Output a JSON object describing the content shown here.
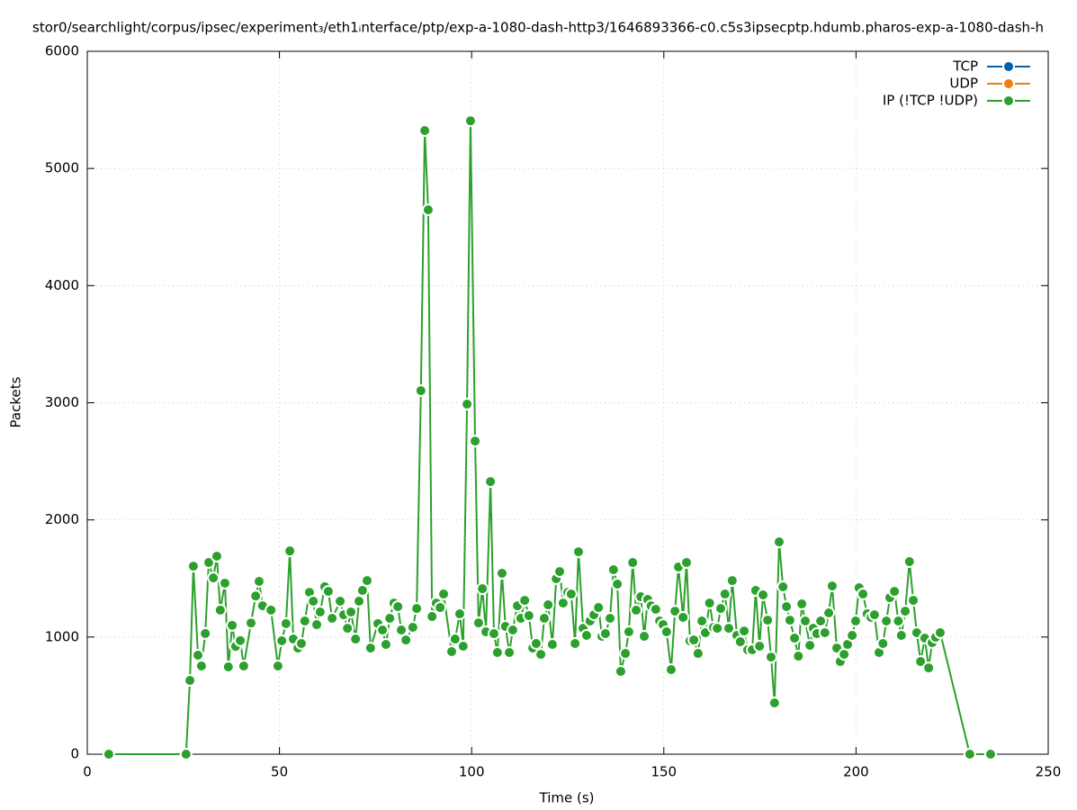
{
  "chart_data": {
    "type": "line",
    "title": "stor0/searchlight/corpus/ipsec/experiment₃/eth1ᵢnterface/ptp/exp-a-1080-dash-http3/1646893366-c0.c5s3ipsecptp.hdumb.pharos-exp-a-1080-dash-h",
    "x_label": "Time (s)",
    "y_label": "Packets",
    "xlim": [
      0,
      250
    ],
    "xticks": [
      0,
      50,
      100,
      150,
      200,
      250
    ],
    "ylim": [
      0,
      6000
    ],
    "yticks": [
      0,
      1000,
      2000,
      3000,
      4000,
      5000,
      6000
    ],
    "grid": true,
    "legend": "top-right",
    "series": [
      {
        "name": "TCP",
        "color": "#0060ad",
        "x": [],
        "values": []
      },
      {
        "name": "UDP",
        "color": "#f07f10",
        "x": [],
        "values": []
      },
      {
        "name": "IP (!TCP  !UDP)",
        "color": "#2ca02c",
        "x": [
          5.6,
          25.7,
          26.7,
          27.6,
          28.8,
          29.7,
          30.7,
          31.6,
          32.8,
          33.7,
          34.6,
          35.8,
          36.7,
          37.7,
          38.6,
          39.8,
          40.7,
          42.6,
          43.8,
          44.7,
          45.6,
          47.8,
          49.6,
          50.6,
          51.7,
          52.7,
          53.6,
          54.8,
          55.7,
          56.6,
          57.8,
          58.8,
          59.7,
          60.6,
          61.8,
          62.7,
          63.7,
          65.8,
          66.7,
          67.7,
          68.6,
          69.8,
          70.7,
          71.6,
          72.8,
          73.7,
          75.6,
          76.8,
          77.7,
          78.7,
          79.8,
          80.8,
          81.7,
          82.9,
          84.7,
          85.7,
          86.8,
          87.8,
          88.7,
          89.7,
          90.8,
          91.8,
          92.7,
          94.8,
          95.7,
          96.9,
          97.8,
          98.8,
          99.7,
          100.9,
          101.8,
          102.8,
          103.7,
          104.9,
          105.8,
          106.7,
          107.9,
          108.8,
          109.8,
          110.7,
          111.9,
          112.8,
          113.8,
          114.9,
          115.9,
          116.8,
          118.0,
          118.9,
          119.9,
          121.0,
          122.0,
          122.9,
          123.8,
          125.0,
          125.9,
          126.9,
          127.8,
          129.0,
          129.9,
          130.8,
          131.8,
          133.0,
          133.9,
          134.8,
          136.0,
          136.9,
          137.9,
          138.8,
          140.0,
          140.9,
          141.9,
          142.8,
          144.0,
          144.9,
          145.8,
          146.7,
          147.9,
          148.9,
          149.8,
          150.7,
          151.9,
          152.9,
          153.8,
          155.0,
          155.9,
          156.8,
          157.8,
          158.9,
          159.9,
          160.8,
          161.9,
          162.9,
          163.9,
          164.8,
          165.9,
          166.9,
          167.8,
          169.0,
          169.9,
          170.9,
          171.8,
          173.0,
          173.9,
          174.9,
          175.8,
          177.0,
          177.9,
          178.8,
          180.0,
          181.0,
          181.9,
          182.8,
          184.0,
          185.0,
          185.9,
          186.8,
          188.0,
          188.9,
          189.8,
          190.8,
          191.9,
          192.9,
          193.8,
          195.0,
          195.9,
          196.9,
          197.8,
          199.0,
          199.9,
          200.8,
          201.8,
          202.9,
          203.9,
          204.8,
          206.0,
          207.0,
          207.9,
          208.8,
          210.0,
          211.0,
          211.8,
          212.8,
          213.9,
          214.9,
          215.8,
          216.8,
          217.9,
          218.9,
          219.8,
          220.7,
          221.9,
          229.6,
          235.0
        ],
        "values": [
          0,
          0,
          630,
          1605,
          845,
          753,
          1030,
          1636,
          1505,
          1690,
          1230,
          1460,
          745,
          1100,
          920,
          970,
          753,
          1120,
          1350,
          1475,
          1267,
          1230,
          753,
          968,
          1115,
          1735,
          983,
          906,
          945,
          1137,
          1382,
          1306,
          1106,
          1214,
          1430,
          1390,
          1160,
          1306,
          1190,
          1075,
          1214,
          983,
          1306,
          1398,
          1482,
          906,
          1115,
          1060,
          937,
          1160,
          1290,
          1260,
          1060,
          975,
          1083,
          1244,
          3103,
          5323,
          4647,
          1175,
          1290,
          1252,
          1367,
          876,
          983,
          1198,
          922,
          2988,
          5407,
          2673,
          1121,
          1413,
          1045,
          2327,
          1029,
          868,
          1544,
          1091,
          868,
          1060,
          1267,
          1160,
          1313,
          1183,
          906,
          945,
          852,
          1160,
          1275,
          937,
          1498,
          1559,
          1290,
          1382,
          1367,
          945,
          1728,
          1075,
          1014,
          1137,
          1190,
          1252,
          1006,
          1029,
          1160,
          1575,
          1452,
          707,
          860,
          1045,
          1636,
          1229,
          1344,
          1006,
          1321,
          1267,
          1237,
          1137,
          1106,
          1045,
          722,
          1221,
          1598,
          1168,
          1636,
          968,
          975,
          860,
          1137,
          1037,
          1290,
          1083,
          1075,
          1244,
          1367,
          1075,
          1482,
          1014,
          960,
          1052,
          891,
          891,
          1398,
          922,
          1360,
          1144,
          829,
          438,
          1812,
          1429,
          1260,
          1144,
          991,
          837,
          1283,
          1137,
          929,
          1075,
          1029,
          1137,
          1037,
          1206,
          1436,
          906,
          791,
          852,
          937,
          1014,
          1137,
          1421,
          1367,
          1198,
          1168,
          1190,
          868,
          945,
          1137,
          1336,
          1390,
          1137,
          1014,
          1221,
          1644,
          1313,
          1037,
          791,
          991,
          737,
          952,
          998,
          1037,
          0,
          0
        ]
      }
    ]
  }
}
